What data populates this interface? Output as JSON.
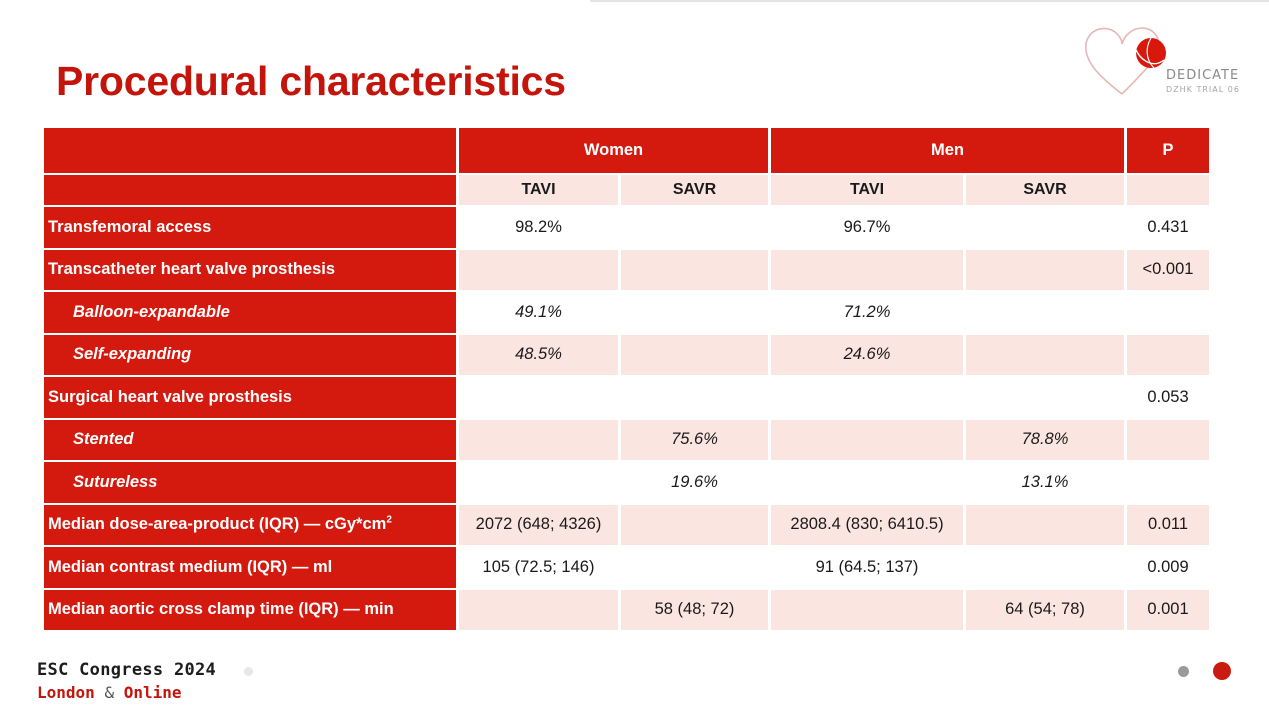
{
  "title": "Procedural characteristics",
  "logo": {
    "name": "DEDICATE",
    "subtitle": "DZHK TRIAL 06",
    "icon": "heart-valve-logo-icon",
    "colors": {
      "heart_outline": "#e6b7b3",
      "circle": "#d8170d"
    }
  },
  "table": {
    "group_headers": {
      "women": "Women",
      "men": "Men",
      "p": "P"
    },
    "sub_headers": {
      "women_tavi": "TAVI",
      "women_savr": "SAVR",
      "men_tavi": "TAVI",
      "men_savr": "SAVR"
    },
    "rows": [
      {
        "label": "Transfemoral access",
        "women_tavi": "98.2%",
        "women_savr": "",
        "men_tavi": "96.7%",
        "men_savr": "",
        "p": "0.431"
      },
      {
        "label": "Transcatheter heart valve prosthesis",
        "women_tavi": "",
        "women_savr": "",
        "men_tavi": "",
        "men_savr": "",
        "p": "<0.001"
      },
      {
        "label": "Balloon-expandable",
        "women_tavi": "49.1%",
        "women_savr": "",
        "men_tavi": "71.2%",
        "men_savr": "",
        "p": ""
      },
      {
        "label": "Self-expanding",
        "women_tavi": "48.5%",
        "women_savr": "",
        "men_tavi": "24.6%",
        "men_savr": "",
        "p": ""
      },
      {
        "label": "Surgical heart valve prosthesis",
        "women_tavi": "",
        "women_savr": "",
        "men_tavi": "",
        "men_savr": "",
        "p": "0.053"
      },
      {
        "label": "Stented",
        "women_tavi": "",
        "women_savr": "75.6%",
        "men_tavi": "",
        "men_savr": "78.8%",
        "p": ""
      },
      {
        "label": "Sutureless",
        "women_tavi": "",
        "women_savr": "19.6%",
        "men_tavi": "",
        "men_savr": "13.1%",
        "p": ""
      },
      {
        "label": "Median dose-area-product (IQR) — cGy*cm",
        "label_sup": "2",
        "women_tavi": "2072 (648; 4326)",
        "women_savr": "",
        "men_tavi": "2808.4 (830; 6410.5)",
        "men_savr": "",
        "p": "0.011"
      },
      {
        "label": "Median contrast medium (IQR) — ml",
        "women_tavi": "105 (72.5; 146)",
        "women_savr": "",
        "men_tavi": "91 (64.5; 137)",
        "men_savr": "",
        "p": "0.009"
      },
      {
        "label": "Median aortic cross clamp time (IQR) — min",
        "women_tavi": "",
        "women_savr": "58 (48; 72)",
        "men_tavi": "",
        "men_savr": "64 (54; 78)",
        "p": "0.001"
      }
    ]
  },
  "footer": {
    "congress": "ESC Congress 2024",
    "location_city": "London",
    "location_amp": "&",
    "location_online": "Online"
  },
  "colors": {
    "accent_red": "#d41a0f",
    "title_red": "#c4150c",
    "row_tint": "#fbe5e0"
  }
}
